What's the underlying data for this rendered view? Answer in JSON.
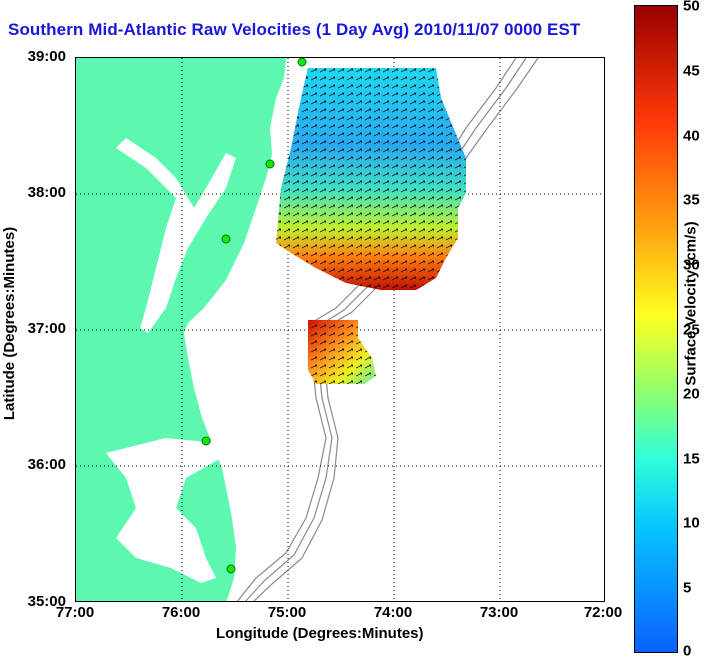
{
  "title": "Southern Mid-Atlantic Raw Velocities (1 Day Avg) 2010/11/07 0000 EST",
  "xaxis": {
    "label": "Longitude (Degrees:Minutes)",
    "ticks": [
      "77:00",
      "76:00",
      "75:00",
      "74:00",
      "73:00",
      "72:00"
    ]
  },
  "yaxis": {
    "label": "Latitude (Degrees:Minutes)",
    "ticks": [
      "39:00",
      "38:00",
      "37:00",
      "36:00",
      "35:00"
    ]
  },
  "colorbar": {
    "label": "Surface Velocity (cm/s)",
    "ticks": [
      "50",
      "45",
      "40",
      "35",
      "30",
      "25",
      "20",
      "15",
      "10",
      "5",
      "0"
    ]
  },
  "colors": {
    "title": "#1818d8",
    "land": "#5cf8b0",
    "station": "#10e810",
    "bathymetry": "#8a8a8a"
  }
}
